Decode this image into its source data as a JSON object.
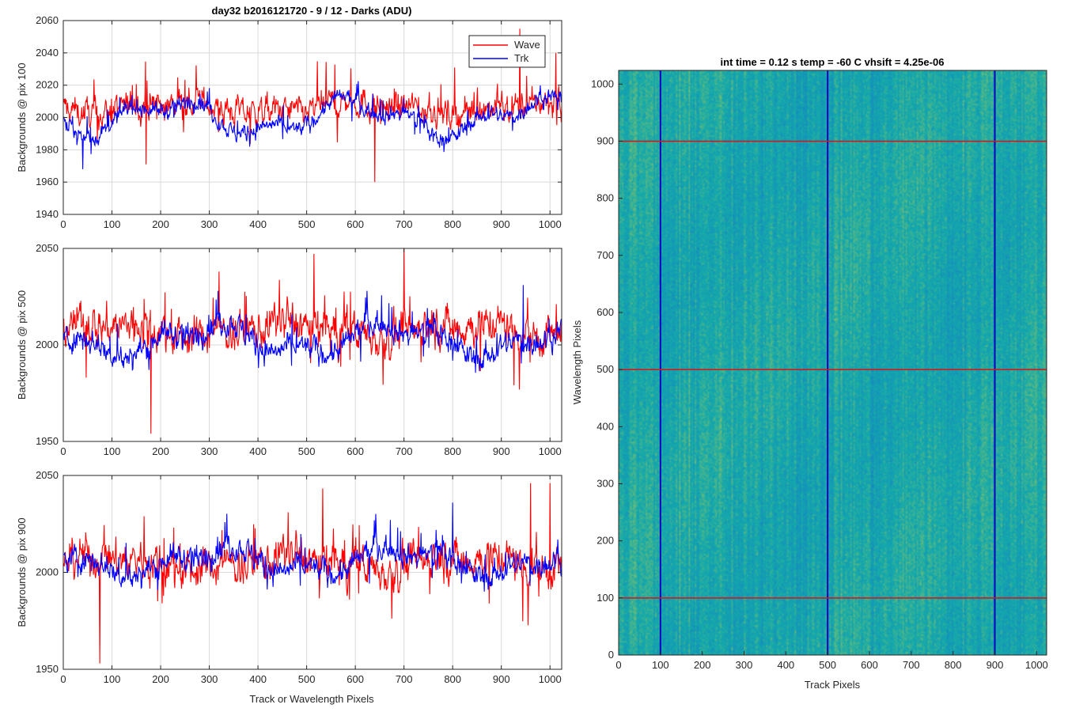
{
  "figure": {
    "left_title": "day32 b2016121720 - 9 / 12 - Darks (ADU)",
    "right_title": "int time = 0.12 s    temp = -60 C    vhsift = 4.25e-06",
    "left_xlabel": "Track or Wavelength Pixels",
    "right_xlabel": "Track Pixels",
    "right_ylabel": "Wavelength Pixels",
    "colors": {
      "wave": "#ff0000",
      "trk": "#0000ff",
      "grid": "#d9d9d9",
      "axis": "#262626"
    }
  },
  "chart_data": [
    {
      "type": "line",
      "ylabel": "Backgrounds @ pix 100",
      "xlim": [
        0,
        1024
      ],
      "ylim": [
        1940,
        2060
      ],
      "xticks": [
        0,
        100,
        200,
        300,
        400,
        500,
        600,
        700,
        800,
        900,
        1000
      ],
      "yticks": [
        1940,
        1960,
        1980,
        2000,
        2020,
        2040,
        2060
      ],
      "grid": true,
      "legend": "top-right",
      "series": [
        {
          "name": "Wave",
          "color": "#ff0000",
          "mean": 2006,
          "noise": 7,
          "spikes": [
            [
              640,
              1960
            ],
            [
              170,
              1971
            ],
            [
              938,
              2055
            ],
            [
              1012,
              2040
            ]
          ]
        },
        {
          "name": "Trk",
          "color": "#0000ff",
          "mean": 2000,
          "noise": 4,
          "drift": 9,
          "spikes": [
            [
              40,
              1968
            ]
          ]
        }
      ]
    },
    {
      "type": "line",
      "ylabel": "Backgrounds @ pix 500",
      "xlim": [
        0,
        1024
      ],
      "ylim": [
        1950,
        2050
      ],
      "xticks": [
        0,
        100,
        200,
        300,
        400,
        500,
        600,
        700,
        800,
        900,
        1000
      ],
      "yticks": [
        1950,
        2000,
        2050
      ],
      "grid": true,
      "series": [
        {
          "name": "Wave",
          "color": "#ff0000",
          "mean": 2008,
          "noise": 8,
          "spikes": [
            [
              180,
              1954
            ],
            [
              700,
              2050
            ],
            [
              320,
              2038
            ]
          ]
        },
        {
          "name": "Trk",
          "color": "#0000ff",
          "mean": 2003,
          "noise": 5,
          "drift": 7,
          "spikes": [
            [
              945,
              2031
            ]
          ]
        }
      ]
    },
    {
      "type": "line",
      "ylabel": "Backgrounds @ pix 900",
      "xlim": [
        0,
        1024
      ],
      "ylim": [
        1950,
        2050
      ],
      "xticks": [
        0,
        100,
        200,
        300,
        400,
        500,
        600,
        700,
        800,
        900,
        1000
      ],
      "yticks": [
        1950,
        2000,
        2050
      ],
      "grid": true,
      "series": [
        {
          "name": "Wave",
          "color": "#ff0000",
          "mean": 2005,
          "noise": 8,
          "spikes": [
            [
              75,
              1953
            ],
            [
              960,
              2046
            ],
            [
              1000,
              2046
            ]
          ]
        },
        {
          "name": "Trk",
          "color": "#0000ff",
          "mean": 2006,
          "noise": 5,
          "drift": 6,
          "spikes": [
            [
              800,
              2036
            ]
          ]
        }
      ]
    },
    {
      "type": "heatmap",
      "title": "int time = 0.12 s    temp = -60 C    vhsift = 4.25e-06",
      "xlabel": "Track Pixels",
      "ylabel": "Wavelength Pixels",
      "xlim": [
        0,
        1024
      ],
      "ylim": [
        0,
        1024
      ],
      "xticks": [
        0,
        100,
        200,
        300,
        400,
        500,
        600,
        700,
        800,
        900,
        1000
      ],
      "yticks": [
        0,
        100,
        200,
        300,
        400,
        500,
        600,
        700,
        800,
        900,
        1000
      ],
      "colormap": "parula",
      "vertical_lines": [
        100,
        500,
        900
      ],
      "horizontal_lines": [
        100,
        500,
        900
      ]
    }
  ]
}
